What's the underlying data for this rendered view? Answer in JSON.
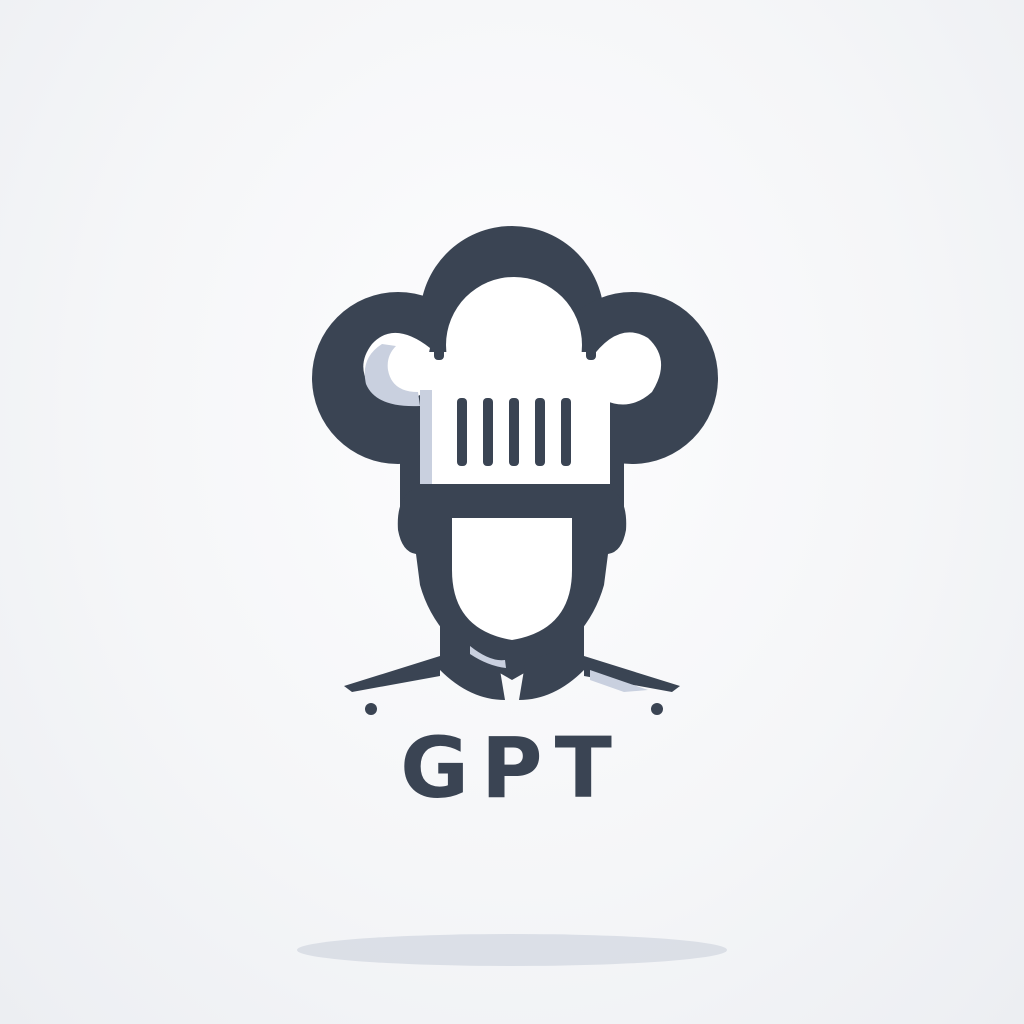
{
  "brand": {
    "wordmark": "GPT",
    "primary_color": "#3a4453",
    "highlight_color": "#c9d0df",
    "background_color": "#f6f7f9"
  },
  "logo": {
    "icon": "chef-hat-head-icon"
  }
}
